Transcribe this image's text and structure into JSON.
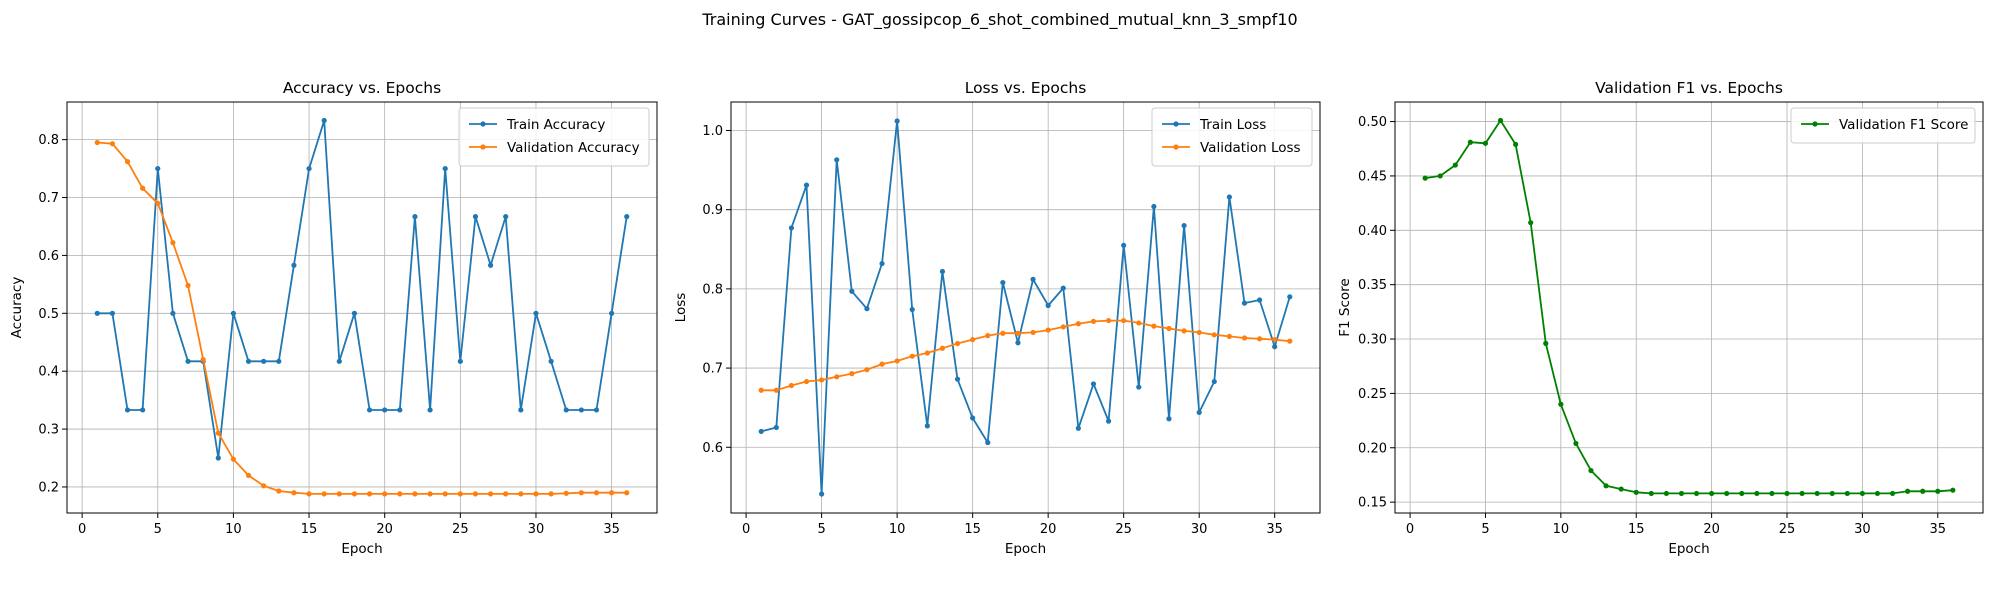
{
  "figure": {
    "suptitle": "Training Curves - GAT_gossipcop_6_shot_combined_mutual_knn_3_smpf10"
  },
  "chart_data": [
    {
      "type": "line",
      "title": "Accuracy vs. Epochs",
      "xlabel": "Epoch",
      "ylabel": "Accuracy",
      "xlim": [
        -1,
        38
      ],
      "ylim": [
        0.155,
        0.865
      ],
      "xticks": [
        0,
        5,
        10,
        15,
        20,
        25,
        30,
        35
      ],
      "yticks": [
        0.2,
        0.3,
        0.4,
        0.5,
        0.6,
        0.7,
        0.8
      ],
      "ytick_labels": [
        "0.2",
        "0.3",
        "0.4",
        "0.5",
        "0.6",
        "0.7",
        "0.8"
      ],
      "grid": true,
      "legend_position": "upper right",
      "x": [
        1,
        2,
        3,
        4,
        5,
        6,
        7,
        8,
        9,
        10,
        11,
        12,
        13,
        14,
        15,
        16,
        17,
        18,
        19,
        20,
        21,
        22,
        23,
        24,
        25,
        26,
        27,
        28,
        29,
        30,
        31,
        32,
        33,
        34,
        35,
        36
      ],
      "series": [
        {
          "name": "Train Accuracy",
          "color": "#1f77b4",
          "values": [
            0.5,
            0.5,
            0.333,
            0.333,
            0.75,
            0.5,
            0.417,
            0.417,
            0.25,
            0.5,
            0.417,
            0.417,
            0.417,
            0.583,
            0.75,
            0.833,
            0.417,
            0.5,
            0.333,
            0.333,
            0.333,
            0.667,
            0.333,
            0.75,
            0.417,
            0.667,
            0.583,
            0.667,
            0.333,
            0.5,
            0.417,
            0.333,
            0.333,
            0.333,
            0.5,
            0.667
          ]
        },
        {
          "name": "Validation Accuracy",
          "color": "#ff7f0e",
          "values": [
            0.795,
            0.793,
            0.762,
            0.716,
            0.69,
            0.622,
            0.548,
            0.42,
            0.293,
            0.248,
            0.22,
            0.202,
            0.193,
            0.19,
            0.188,
            0.188,
            0.188,
            0.188,
            0.188,
            0.188,
            0.188,
            0.188,
            0.188,
            0.188,
            0.188,
            0.188,
            0.188,
            0.188,
            0.188,
            0.188,
            0.188,
            0.189,
            0.19,
            0.19,
            0.19,
            0.19
          ]
        }
      ]
    },
    {
      "type": "line",
      "title": "Loss vs. Epochs",
      "xlabel": "Epoch",
      "ylabel": "Loss",
      "xlim": [
        -1,
        38
      ],
      "ylim": [
        0.517,
        1.036
      ],
      "xticks": [
        0,
        5,
        10,
        15,
        20,
        25,
        30,
        35
      ],
      "yticks": [
        0.6,
        0.7,
        0.8,
        0.9,
        1.0
      ],
      "ytick_labels": [
        "0.6",
        "0.7",
        "0.8",
        "0.9",
        "1.0"
      ],
      "grid": true,
      "legend_position": "upper right",
      "x": [
        1,
        2,
        3,
        4,
        5,
        6,
        7,
        8,
        9,
        10,
        11,
        12,
        13,
        14,
        15,
        16,
        17,
        18,
        19,
        20,
        21,
        22,
        23,
        24,
        25,
        26,
        27,
        28,
        29,
        30,
        31,
        32,
        33,
        34,
        35,
        36
      ],
      "series": [
        {
          "name": "Train Loss",
          "color": "#1f77b4",
          "values": [
            0.62,
            0.625,
            0.877,
            0.931,
            0.541,
            0.963,
            0.797,
            0.775,
            0.832,
            1.012,
            0.774,
            0.627,
            0.822,
            0.686,
            0.637,
            0.606,
            0.808,
            0.732,
            0.812,
            0.779,
            0.801,
            0.624,
            0.68,
            0.633,
            0.855,
            0.676,
            0.904,
            0.636,
            0.88,
            0.644,
            0.683,
            0.916,
            0.782,
            0.786,
            0.727,
            0.79
          ]
        },
        {
          "name": "Validation Loss",
          "color": "#ff7f0e",
          "values": [
            0.672,
            0.672,
            0.678,
            0.683,
            0.685,
            0.689,
            0.693,
            0.698,
            0.705,
            0.709,
            0.715,
            0.719,
            0.725,
            0.731,
            0.736,
            0.741,
            0.744,
            0.744,
            0.745,
            0.748,
            0.752,
            0.756,
            0.759,
            0.76,
            0.76,
            0.757,
            0.753,
            0.75,
            0.747,
            0.745,
            0.742,
            0.74,
            0.738,
            0.737,
            0.736,
            0.734
          ]
        }
      ]
    },
    {
      "type": "line",
      "title": "Validation F1 vs. Epochs",
      "xlabel": "Epoch",
      "ylabel": "F1 Score",
      "xlim": [
        -1,
        38
      ],
      "ylim": [
        0.14,
        0.518
      ],
      "xticks": [
        0,
        5,
        10,
        15,
        20,
        25,
        30,
        35
      ],
      "yticks": [
        0.15,
        0.2,
        0.25,
        0.3,
        0.35,
        0.4,
        0.45,
        0.5
      ],
      "ytick_labels": [
        "0.15",
        "0.20",
        "0.25",
        "0.30",
        "0.35",
        "0.40",
        "0.45",
        "0.50"
      ],
      "grid": true,
      "legend_position": "upper right",
      "x": [
        1,
        2,
        3,
        4,
        5,
        6,
        7,
        8,
        9,
        10,
        11,
        12,
        13,
        14,
        15,
        16,
        17,
        18,
        19,
        20,
        21,
        22,
        23,
        24,
        25,
        26,
        27,
        28,
        29,
        30,
        31,
        32,
        33,
        34,
        35,
        36
      ],
      "series": [
        {
          "name": "Validation F1 Score",
          "color": "#008000",
          "values": [
            0.448,
            0.45,
            0.46,
            0.481,
            0.48,
            0.501,
            0.479,
            0.407,
            0.296,
            0.24,
            0.204,
            0.179,
            0.165,
            0.162,
            0.159,
            0.158,
            0.158,
            0.158,
            0.158,
            0.158,
            0.158,
            0.158,
            0.158,
            0.158,
            0.158,
            0.158,
            0.158,
            0.158,
            0.158,
            0.158,
            0.158,
            0.158,
            0.16,
            0.16,
            0.16,
            0.161
          ]
        }
      ]
    }
  ]
}
